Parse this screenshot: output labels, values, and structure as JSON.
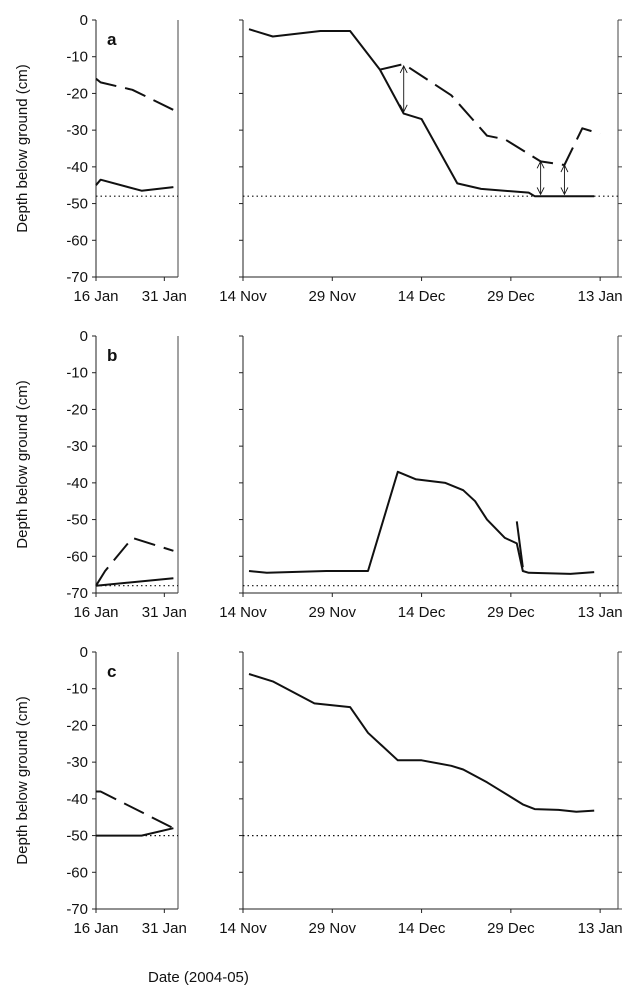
{
  "figure": {
    "x_axis_title": "Date (2004-05)"
  },
  "chart_data": [
    {
      "type": "line",
      "panel": "a",
      "ylabel": "Depth below ground (cm)",
      "ylim": [
        -70,
        0
      ],
      "yticks": [
        0,
        -10,
        -20,
        -30,
        -40,
        -50,
        -60,
        -70
      ],
      "left": {
        "xlim": [
          "2005-01-16",
          "2005-02-03"
        ],
        "xticks": [
          {
            "date": "2005-01-16",
            "label": "16 Jan"
          },
          {
            "date": "2005-01-31",
            "label": "31 Jan"
          }
        ],
        "series": [
          {
            "style": "dashed",
            "points": [
              [
                "2005-01-16",
                -16
              ],
              [
                "2005-01-17",
                -17
              ],
              [
                "2005-01-24",
                -19
              ],
              [
                "2005-02-02",
                -24.5
              ]
            ]
          },
          {
            "style": "solid",
            "points": [
              [
                "2005-01-16",
                -45
              ],
              [
                "2005-01-17",
                -43.5
              ],
              [
                "2005-01-26",
                -46.5
              ],
              [
                "2005-02-02",
                -45.5
              ]
            ]
          },
          {
            "style": "dotted",
            "points": [
              [
                "2005-01-16",
                -48
              ],
              [
                "2005-02-03",
                -48
              ]
            ]
          }
        ]
      },
      "right": {
        "xlim": [
          "2004-11-14",
          "2005-01-16"
        ],
        "xticks": [
          {
            "date": "2004-11-14",
            "label": "14 Nov"
          },
          {
            "date": "2004-11-29",
            "label": "29 Nov"
          },
          {
            "date": "2004-12-14",
            "label": "14 Dec"
          },
          {
            "date": "2004-12-29",
            "label": "29 Dec"
          },
          {
            "date": "2005-01-13",
            "label": "13 Jan"
          }
        ],
        "series": [
          {
            "style": "solid",
            "points": [
              [
                "2004-11-15",
                -2.5
              ],
              [
                "2004-11-19",
                -4.5
              ],
              [
                "2004-11-27",
                -3
              ],
              [
                "2004-12-02",
                -3
              ],
              [
                "2004-12-07",
                -13.5
              ],
              [
                "2004-12-11",
                -25.5
              ],
              [
                "2004-12-14",
                -27
              ],
              [
                "2004-12-20",
                -44.5
              ],
              [
                "2004-12-24",
                -46
              ],
              [
                "2005-01-01",
                -47
              ],
              [
                "2005-01-02",
                -48
              ],
              [
                "2005-01-12",
                -48
              ]
            ]
          },
          {
            "style": "dashed",
            "points": [
              [
                "2004-12-07",
                -13.5
              ],
              [
                "2004-12-11",
                -12
              ],
              [
                "2004-12-19",
                -20.5
              ],
              [
                "2004-12-25",
                -31.5
              ],
              [
                "2004-12-28",
                -32.5
              ],
              [
                "2005-01-03",
                -38.5
              ],
              [
                "2005-01-07",
                -39.5
              ],
              [
                "2005-01-10",
                -29.5
              ],
              [
                "2005-01-13",
                -31
              ]
            ]
          },
          {
            "style": "dotted",
            "points": [
              [
                "2004-11-14",
                -48
              ],
              [
                "2005-01-16",
                -48
              ]
            ]
          }
        ],
        "annotations": [
          {
            "type": "double-arrow",
            "x": "2004-12-11",
            "y1": -12.5,
            "y2": -25
          },
          {
            "type": "double-arrow",
            "x": "2005-01-03",
            "y1": -38.5,
            "y2": -47.5
          },
          {
            "type": "double-arrow",
            "x": "2005-01-07",
            "y1": -39.5,
            "y2": -47.5
          }
        ]
      }
    },
    {
      "type": "line",
      "panel": "b",
      "ylabel": "Depth below ground (cm)",
      "ylim": [
        -70,
        0
      ],
      "yticks": [
        0,
        -10,
        -20,
        -30,
        -40,
        -50,
        -60,
        -70
      ],
      "left": {
        "xlim": [
          "2005-01-16",
          "2005-02-03"
        ],
        "xticks": [
          {
            "date": "2005-01-16",
            "label": "16 Jan"
          },
          {
            "date": "2005-01-31",
            "label": "31 Jan"
          }
        ],
        "series": [
          {
            "style": "dashed",
            "points": [
              [
                "2005-01-16",
                -68
              ],
              [
                "2005-01-18",
                -64
              ],
              [
                "2005-01-24",
                -55
              ],
              [
                "2005-02-02",
                -58.5
              ]
            ]
          },
          {
            "style": "solid",
            "points": [
              [
                "2005-01-16",
                -68
              ],
              [
                "2005-02-02",
                -66
              ]
            ]
          },
          {
            "style": "dotted",
            "points": [
              [
                "2005-01-16",
                -68
              ],
              [
                "2005-02-03",
                -68
              ]
            ]
          }
        ]
      },
      "right": {
        "xlim": [
          "2004-11-14",
          "2005-01-16"
        ],
        "xticks": [
          {
            "date": "2004-11-14",
            "label": "14 Nov"
          },
          {
            "date": "2004-11-29",
            "label": "29 Nov"
          },
          {
            "date": "2004-12-14",
            "label": "14 Dec"
          },
          {
            "date": "2004-12-29",
            "label": "29 Dec"
          },
          {
            "date": "2005-01-13",
            "label": "13 Jan"
          }
        ],
        "series": [
          {
            "style": "solid",
            "points": [
              [
                "2004-11-15",
                -64
              ],
              [
                "2004-11-18",
                -64.5
              ],
              [
                "2004-11-28",
                -64
              ],
              [
                "2004-12-05",
                -64
              ],
              [
                "2004-12-10",
                -37
              ],
              [
                "2004-12-13",
                -39
              ],
              [
                "2004-12-18",
                -40
              ],
              [
                "2004-12-21",
                -42
              ],
              [
                "2004-12-23",
                -45
              ],
              [
                "2004-12-25",
                -50
              ],
              [
                "2004-12-28",
                -55
              ],
              [
                "2004-12-30",
                -56.5
              ],
              [
                "2004-12-31",
                -64
              ],
              [
                "2005-01-01",
                -64.5
              ],
              [
                "2005-01-08",
                -64.8
              ],
              [
                "2005-01-12",
                -64.3
              ]
            ]
          },
          {
            "style": "solid",
            "points": [
              [
                "2004-12-30",
                -50.5
              ],
              [
                "2004-12-31",
                -63
              ]
            ]
          },
          {
            "style": "dotted",
            "points": [
              [
                "2004-11-14",
                -68
              ],
              [
                "2005-01-16",
                -68
              ]
            ]
          }
        ]
      }
    },
    {
      "type": "line",
      "panel": "c",
      "ylabel": "Depth below ground (cm)",
      "ylim": [
        -70,
        0
      ],
      "yticks": [
        0,
        -10,
        -20,
        -30,
        -40,
        -50,
        -60,
        -70
      ],
      "left": {
        "xlim": [
          "2005-01-16",
          "2005-02-03"
        ],
        "xticks": [
          {
            "date": "2005-01-16",
            "label": "16 Jan"
          },
          {
            "date": "2005-01-31",
            "label": "31 Jan"
          }
        ],
        "series": [
          {
            "style": "dashed",
            "points": [
              [
                "2005-01-16",
                -38
              ],
              [
                "2005-01-17",
                -38
              ],
              [
                "2005-02-02",
                -48
              ]
            ]
          },
          {
            "style": "solid",
            "points": [
              [
                "2005-01-16",
                -50
              ],
              [
                "2005-01-26",
                -50
              ],
              [
                "2005-02-02",
                -48
              ]
            ]
          },
          {
            "style": "dotted",
            "points": [
              [
                "2005-01-16",
                -50
              ],
              [
                "2005-02-03",
                -50
              ]
            ]
          }
        ]
      },
      "right": {
        "xlim": [
          "2004-11-14",
          "2005-01-16"
        ],
        "xticks": [
          {
            "date": "2004-11-14",
            "label": "14 Nov"
          },
          {
            "date": "2004-11-29",
            "label": "29 Nov"
          },
          {
            "date": "2004-12-14",
            "label": "14 Dec"
          },
          {
            "date": "2004-12-29",
            "label": "29 Dec"
          },
          {
            "date": "2005-01-13",
            "label": "13 Jan"
          }
        ],
        "series": [
          {
            "style": "solid",
            "points": [
              [
                "2004-11-15",
                -6
              ],
              [
                "2004-11-19",
                -8
              ],
              [
                "2004-11-26",
                -14
              ],
              [
                "2004-12-02",
                -15
              ],
              [
                "2004-12-05",
                -22
              ],
              [
                "2004-12-10",
                -29.5
              ],
              [
                "2004-12-14",
                -29.5
              ],
              [
                "2004-12-19",
                -31
              ],
              [
                "2004-12-21",
                -32
              ],
              [
                "2004-12-25",
                -35.5
              ],
              [
                "2004-12-27",
                -37.5
              ],
              [
                "2004-12-29",
                -39.5
              ],
              [
                "2004-12-31",
                -41.5
              ],
              [
                "2005-01-02",
                -42.8
              ],
              [
                "2005-01-06",
                -43
              ],
              [
                "2005-01-09",
                -43.5
              ],
              [
                "2005-01-12",
                -43.2
              ]
            ]
          },
          {
            "style": "dotted",
            "points": [
              [
                "2004-11-14",
                -50
              ],
              [
                "2005-01-16",
                -50
              ]
            ]
          }
        ]
      }
    }
  ]
}
